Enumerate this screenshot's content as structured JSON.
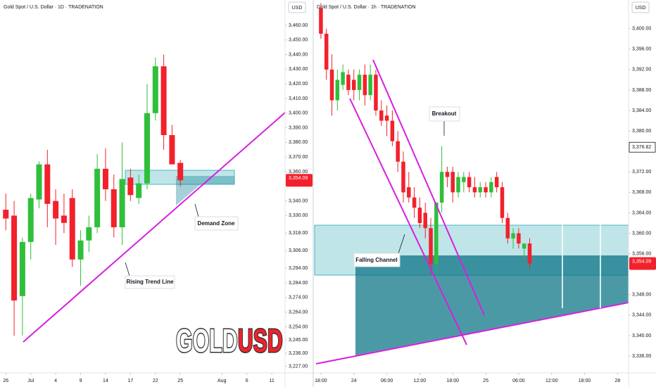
{
  "watermark": [
    "GOLD",
    "USD"
  ],
  "chart_data": [
    {
      "type": "candlestick",
      "title": "Gold Spot / U.S. Dollar · 1D · TRADENATION",
      "currency": "USD",
      "up_color": "#2fbf3a",
      "down_color": "#f2212c",
      "x": [
        0,
        1,
        2,
        3,
        4,
        5,
        6,
        7,
        8,
        9,
        10,
        11,
        12,
        13,
        14,
        15,
        16,
        17,
        18,
        19,
        20,
        21
      ],
      "open": [
        3334,
        3330,
        3275,
        3312,
        3341,
        3365,
        3340,
        3330,
        3342,
        3300,
        3313,
        3322,
        3362,
        3348,
        3322,
        3356,
        3342,
        3352,
        3400,
        3432,
        3385,
        3366
      ],
      "high": [
        3345,
        3340,
        3315,
        3345,
        3367,
        3375,
        3348,
        3345,
        3348,
        3320,
        3330,
        3372,
        3376,
        3358,
        3380,
        3362,
        3358,
        3420,
        3438,
        3440,
        3392,
        3368
      ],
      "low": [
        3320,
        3248,
        3248,
        3300,
        3335,
        3322,
        3310,
        3318,
        3295,
        3282,
        3305,
        3318,
        3340,
        3315,
        3310,
        3340,
        3338,
        3348,
        3395,
        3375,
        3365,
        3350
      ],
      "close": [
        3328,
        3272,
        3312,
        3342,
        3365,
        3338,
        3328,
        3325,
        3300,
        3313,
        3322,
        3362,
        3348,
        3322,
        3355,
        3344,
        3352,
        3400,
        3432,
        3385,
        3365,
        3354.09
      ],
      "xlim": [
        -0.7,
        33.6
      ],
      "ylim": [
        3222.5,
        3477.3
      ],
      "xticks": [
        {
          "value": 0,
          "label": "26"
        },
        {
          "value": 3,
          "label": "Jul"
        },
        {
          "value": 6,
          "label": "4"
        },
        {
          "value": 9,
          "label": "9"
        },
        {
          "value": 12,
          "label": "14"
        },
        {
          "value": 15,
          "label": "17"
        },
        {
          "value": 18,
          "label": "22"
        },
        {
          "value": 21,
          "label": "25"
        },
        {
          "value": 26,
          "label": "Aug"
        },
        {
          "value": 29,
          "label": "6"
        },
        {
          "value": 32,
          "label": "11"
        }
      ],
      "yticks": [
        {
          "value": 3460,
          "label": "3,460.00"
        },
        {
          "value": 3450,
          "label": "3,450.00"
        },
        {
          "value": 3440,
          "label": "3,440.00"
        },
        {
          "value": 3430,
          "label": "3,430.00"
        },
        {
          "value": 3420,
          "label": "3,420.00"
        },
        {
          "value": 3410,
          "label": "3,410.00"
        },
        {
          "value": 3400,
          "label": "3,400.00"
        },
        {
          "value": 3390,
          "label": "3,390.00"
        },
        {
          "value": 3380,
          "label": "3,380.00"
        },
        {
          "value": 3370,
          "label": "3,370.00"
        },
        {
          "value": 3360,
          "label": "3,360.00"
        },
        {
          "value": 3340,
          "label": "3,340.00"
        },
        {
          "value": 3330,
          "label": "3,330.00"
        },
        {
          "value": 3318,
          "label": "3,318.00"
        },
        {
          "value": 3306,
          "label": "3,306.00"
        },
        {
          "value": 3294,
          "label": "3,294.00"
        },
        {
          "value": 3284,
          "label": "3,284.00"
        },
        {
          "value": 3274,
          "label": "3,274.00"
        },
        {
          "value": 3264,
          "label": "3,264.00"
        },
        {
          "value": 3254,
          "label": "3,254.00"
        },
        {
          "value": 3245,
          "label": "3,245.00"
        },
        {
          "value": 3236,
          "label": "3,236.00"
        },
        {
          "value": 3227,
          "label": "3,227.00"
        }
      ],
      "price_label": {
        "value": 3354.09,
        "label": "3,354.09"
      },
      "annotations": [
        "Rising Trend Line",
        "Demand Zone"
      ]
    },
    {
      "type": "candlestick",
      "title": "Gold Spot / U.S. Dollar · 1h · TRADENATION",
      "currency": "USD",
      "up_color": "#2fbf3a",
      "down_color": "#f2212c",
      "x": [
        0,
        1,
        2,
        3,
        4,
        5,
        6,
        7,
        8,
        9,
        10,
        11,
        12,
        13,
        14,
        15,
        16,
        17,
        18,
        19,
        20,
        21,
        22,
        23,
        24,
        25,
        26,
        27,
        28,
        29,
        30,
        31,
        32,
        33,
        34,
        35,
        36,
        37,
        38
      ],
      "open": [
        3404,
        3399,
        3392,
        3386,
        3389,
        3391,
        3390,
        3388,
        3391,
        3387,
        3391,
        3384,
        3383,
        3382,
        3378,
        3374,
        3369,
        3367,
        3365,
        3364,
        3361,
        3354,
        3366,
        3372,
        3372,
        3368,
        3370,
        3371,
        3369,
        3368,
        3369,
        3368,
        3371,
        3369,
        3363,
        3359,
        3360,
        3357,
        3358
      ],
      "high": [
        3405,
        3400,
        3395,
        3392,
        3393,
        3392,
        3392,
        3392,
        3393,
        3393,
        3392,
        3386,
        3385,
        3384,
        3380,
        3376,
        3372,
        3369,
        3367,
        3366,
        3363,
        3366,
        3377,
        3373,
        3373,
        3372,
        3372,
        3372,
        3371,
        3370,
        3370,
        3371,
        3372,
        3370,
        3364,
        3361,
        3361,
        3358,
        3359
      ],
      "low": [
        3398,
        3390,
        3383,
        3384,
        3388,
        3387,
        3386,
        3386,
        3385,
        3386,
        3383,
        3381,
        3379,
        3377,
        3372,
        3366,
        3366,
        3363,
        3361,
        3359,
        3352,
        3352,
        3364,
        3369,
        3366,
        3367,
        3368,
        3368,
        3367,
        3367,
        3367,
        3367,
        3368,
        3362,
        3358,
        3357,
        3357,
        3355,
        3353
      ],
      "close": [
        3399,
        3392,
        3386,
        3390,
        3391.5,
        3388,
        3388,
        3391,
        3387,
        3391,
        3384,
        3382,
        3382,
        3378,
        3374,
        3368,
        3367,
        3365,
        3362,
        3361,
        3354,
        3366,
        3372,
        3371,
        3368,
        3371,
        3371,
        3369,
        3368,
        3369,
        3368,
        3370,
        3369,
        3363,
        3359,
        3360,
        3358,
        3358,
        3354.09
      ],
      "xlim": [
        -1.4,
        56
      ],
      "ylim": [
        3332.7,
        3405.6
      ],
      "xticks": [
        {
          "value": 0,
          "label": "18:00"
        },
        {
          "value": 6,
          "label": "24"
        },
        {
          "value": 12,
          "label": "06:00"
        },
        {
          "value": 18,
          "label": "12:00"
        },
        {
          "value": 24,
          "label": "18:00"
        },
        {
          "value": 30,
          "label": "25"
        },
        {
          "value": 36,
          "label": "06:00"
        },
        {
          "value": 42,
          "label": "12:00"
        },
        {
          "value": 48,
          "label": "18:00"
        },
        {
          "value": 54,
          "label": "28"
        }
      ],
      "yticks": [
        {
          "value": 3400,
          "label": "3,400.00"
        },
        {
          "value": 3396,
          "label": "3,396.00"
        },
        {
          "value": 3392,
          "label": "3,392.00"
        },
        {
          "value": 3388,
          "label": "3,388.00"
        },
        {
          "value": 3384,
          "label": "3,384.00"
        },
        {
          "value": 3380,
          "label": "3,380.00"
        },
        {
          "value": 3372,
          "label": "3,372.00"
        },
        {
          "value": 3368,
          "label": "3,368.00"
        },
        {
          "value": 3364,
          "label": "3,364.00"
        },
        {
          "value": 3360,
          "label": "3,360.00"
        },
        {
          "value": 3356,
          "label": "3,356.00"
        },
        {
          "value": 3348,
          "label": "3,348.00"
        },
        {
          "value": 3344,
          "label": "3,344.00"
        },
        {
          "value": 3340,
          "label": "3,340.00"
        },
        {
          "value": 3336,
          "label": "3,336.00"
        }
      ],
      "price_label": {
        "value": 3354.09,
        "label": "3,354.09"
      },
      "level": {
        "value": 3376.82,
        "label": "3,376.82"
      },
      "annotations": [
        "Falling Channel",
        "Breakout"
      ]
    }
  ]
}
